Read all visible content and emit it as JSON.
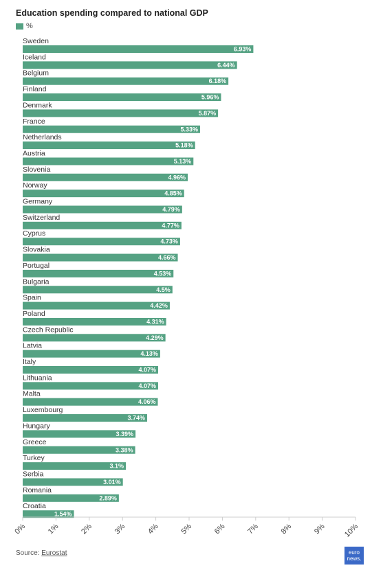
{
  "title": "Education spending compared to national GDP",
  "legend_label": "%",
  "source_prefix": "Source: ",
  "source_link": "Eurostat",
  "logo_line1": "euro",
  "logo_line2": "news.",
  "colors": {
    "bar": "#55a283",
    "axis": "#cccccc",
    "label": "#333333"
  },
  "chart_data": {
    "type": "bar",
    "orientation": "horizontal",
    "title": "Education spending compared to national GDP",
    "series": [
      {
        "name": "%"
      }
    ],
    "categories": [
      "Sweden",
      "Iceland",
      "Belgium",
      "Finland",
      "Denmark",
      "France",
      "Netherlands",
      "Austria",
      "Slovenia",
      "Norway",
      "Germany",
      "Switzerland",
      "Cyprus",
      "Slovakia",
      "Portugal",
      "Bulgaria",
      "Spain",
      "Poland",
      "Czech Republic",
      "Latvia",
      "Italy",
      "Lithuania",
      "Malta",
      "Luxembourg",
      "Hungary",
      "Greece",
      "Turkey",
      "Serbia",
      "Romania",
      "Croatia"
    ],
    "values": [
      6.93,
      6.44,
      6.18,
      5.96,
      5.87,
      5.33,
      5.18,
      5.13,
      4.96,
      4.85,
      4.79,
      4.77,
      4.73,
      4.66,
      4.53,
      4.5,
      4.42,
      4.31,
      4.29,
      4.13,
      4.07,
      4.07,
      4.06,
      3.74,
      3.39,
      3.38,
      3.1,
      3.01,
      2.89,
      1.54
    ],
    "value_labels": [
      "6.93%",
      "6.44%",
      "6.18%",
      "5.96%",
      "5.87%",
      "5.33%",
      "5.18%",
      "5.13%",
      "4.96%",
      "4.85%",
      "4.79%",
      "4.77%",
      "4.73%",
      "4.66%",
      "4.53%",
      "4.5%",
      "4.42%",
      "4.31%",
      "4.29%",
      "4.13%",
      "4.07%",
      "4.07%",
      "4.06%",
      "3.74%",
      "3.39%",
      "3.38%",
      "3.1%",
      "3.01%",
      "2.89%",
      "1.54%"
    ],
    "x_ticks": [
      0,
      1,
      2,
      3,
      4,
      5,
      6,
      7,
      8,
      9,
      10
    ],
    "x_tick_labels": [
      "0%",
      "1%",
      "2%",
      "3%",
      "4%",
      "5%",
      "6%",
      "7%",
      "8%",
      "9%",
      "10%"
    ],
    "xlim": [
      0,
      10
    ],
    "grid": false,
    "legend_position": "top-left"
  }
}
